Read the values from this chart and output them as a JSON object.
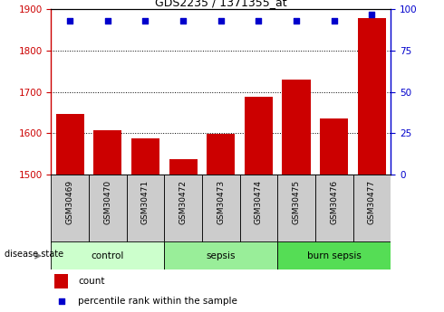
{
  "title": "GDS2235 / 1371355_at",
  "samples": [
    "GSM30469",
    "GSM30470",
    "GSM30471",
    "GSM30472",
    "GSM30473",
    "GSM30474",
    "GSM30475",
    "GSM30476",
    "GSM30477"
  ],
  "counts": [
    1648,
    1608,
    1588,
    1537,
    1598,
    1688,
    1730,
    1635,
    1878
  ],
  "percentiles": [
    93,
    93,
    93,
    93,
    93,
    93,
    93,
    93,
    97
  ],
  "ylim_left": [
    1500,
    1900
  ],
  "ylim_right": [
    0,
    100
  ],
  "yticks_left": [
    1500,
    1600,
    1700,
    1800,
    1900
  ],
  "yticks_right": [
    0,
    25,
    50,
    75,
    100
  ],
  "bar_color": "#CC0000",
  "dot_color": "#0000CC",
  "groups": [
    {
      "label": "control",
      "indices": [
        0,
        1,
        2
      ],
      "color": "#CCFFCC"
    },
    {
      "label": "sepsis",
      "indices": [
        3,
        4,
        5
      ],
      "color": "#99EE99"
    },
    {
      "label": "burn sepsis",
      "indices": [
        6,
        7,
        8
      ],
      "color": "#55DD55"
    }
  ],
  "legend_count_label": "count",
  "legend_percentile_label": "percentile rank within the sample",
  "disease_state_label": "disease state",
  "axis_color_left": "#CC0000",
  "axis_color_right": "#0000CC"
}
